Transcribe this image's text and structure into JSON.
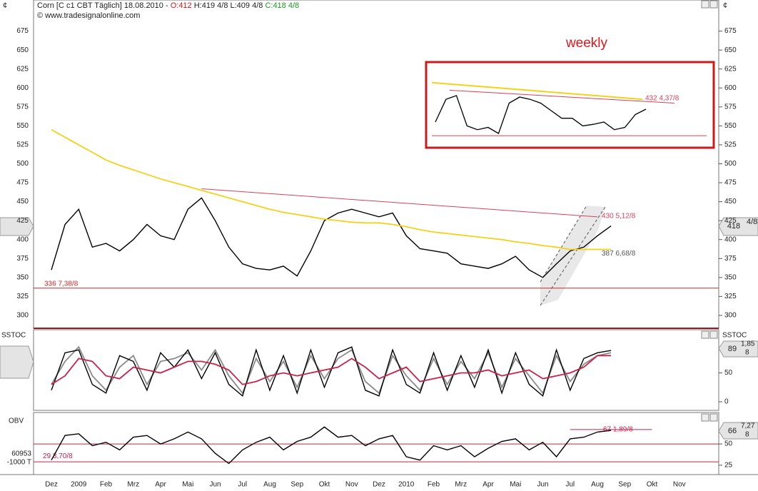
{
  "header": {
    "currency": "¢",
    "title": "Corn [C c1 CBT  Täglich] 18.08.2010 -",
    "open": "O:412",
    "high": "H:419 4/8",
    "low": "L:409 4/8",
    "close": "C:418 4/8",
    "copyright": "© www.tradesignalonline.com"
  },
  "chart_data": [
    {
      "type": "line",
      "categories": [
        "Dez",
        null,
        "2009",
        null,
        "Feb",
        null,
        "Mrz",
        null,
        "Apr",
        null,
        "Mai",
        null,
        "Jun",
        null,
        "Jul",
        null,
        "Aug",
        null,
        "Sep",
        null,
        "Okt",
        null,
        "Nov",
        null,
        "Dez",
        null,
        "2010",
        null,
        "Feb",
        null,
        "Mrz",
        null,
        "Apr",
        null,
        "Mai",
        null,
        "Jun",
        null,
        "Jul",
        null,
        "Aug",
        null,
        "Sep",
        null,
        "Okt",
        null,
        "Nov",
        null
      ],
      "ylim": [
        283,
        716
      ],
      "yticks": [
        300,
        325,
        350,
        375,
        400,
        425,
        450,
        475,
        500,
        525,
        550,
        575,
        600,
        625,
        650,
        675
      ],
      "series": [
        {
          "color": "#000000",
          "values": [
            360,
            420,
            440,
            390,
            395,
            385,
            400,
            420,
            405,
            400,
            440,
            455,
            425,
            390,
            368,
            362,
            360,
            365,
            352,
            385,
            425,
            435,
            440,
            435,
            430,
            435,
            405,
            388,
            385,
            382,
            368,
            365,
            362,
            368,
            378,
            360,
            350,
            368,
            385,
            390,
            405,
            418,
            null,
            null,
            null,
            null,
            null,
            null
          ]
        },
        {
          "color": "#f2d21c",
          "values": [
            545,
            535,
            525,
            515,
            505,
            498,
            492,
            486,
            480,
            475,
            470,
            465,
            460,
            455,
            450,
            445,
            440,
            436,
            433,
            430,
            427,
            425,
            423,
            422,
            422,
            420,
            417,
            413,
            410,
            408,
            406,
            404,
            402,
            400,
            397,
            395,
            392,
            390,
            387,
            387,
            387,
            387,
            null,
            null,
            null,
            null,
            null,
            null
          ],
          "end_label": "387 6,68/8"
        }
      ],
      "support": {
        "value": 336,
        "label": "336 7,38/8",
        "color": "#cc2a2a"
      },
      "resistance": {
        "values": [
          467,
          430
        ],
        "label": "430 5,12/8",
        "color": "#d9405a"
      },
      "last_value": {
        "price": "418",
        "fraction": "4/8"
      },
      "inset": {
        "label": "weekly",
        "values": [
          555,
          585,
          590,
          550,
          545,
          548,
          540,
          580,
          588,
          585,
          580,
          570,
          560,
          560,
          550,
          552,
          555,
          545,
          548,
          565,
          572
        ],
        "ma": [
          607,
          585
        ],
        "trend": [
          597,
          580
        ],
        "support": 537,
        "trend_label": "432 4,37/8",
        "border_color": "#cc1a1a"
      }
    },
    {
      "type": "line",
      "title": "SSTOC",
      "ylim": [
        -15,
        125
      ],
      "yticks": [
        0,
        50
      ],
      "series": [
        {
          "color": "#8a8a8a",
          "values": [
            30,
            70,
            95,
            45,
            20,
            60,
            80,
            30,
            70,
            75,
            85,
            55,
            90,
            45,
            15,
            75,
            35,
            70,
            25,
            80,
            40,
            75,
            90,
            35,
            15,
            80,
            45,
            20,
            75,
            30,
            70,
            40,
            85,
            25,
            75,
            45,
            15,
            80,
            35,
            65,
            80,
            85,
            null,
            null,
            null,
            null,
            null,
            null
          ]
        },
        {
          "color": "#000000",
          "values": [
            20,
            85,
            90,
            30,
            15,
            80,
            70,
            20,
            85,
            60,
            90,
            40,
            85,
            30,
            10,
            90,
            20,
            80,
            15,
            90,
            25,
            85,
            95,
            20,
            10,
            90,
            30,
            15,
            85,
            20,
            80,
            25,
            90,
            15,
            85,
            30,
            10,
            90,
            20,
            75,
            85,
            89,
            null,
            null,
            null,
            null,
            null,
            null
          ]
        },
        {
          "color": "#c8234a",
          "values": [
            30,
            45,
            75,
            70,
            45,
            40,
            60,
            55,
            50,
            60,
            70,
            70,
            65,
            55,
            30,
            35,
            45,
            50,
            45,
            50,
            55,
            60,
            75,
            60,
            40,
            50,
            60,
            35,
            40,
            45,
            50,
            50,
            55,
            45,
            50,
            55,
            40,
            45,
            50,
            60,
            80,
            80,
            null,
            null,
            null,
            null,
            null,
            null
          ]
        }
      ],
      "value_box": [
        "89",
        "1,85",
        "8"
      ]
    },
    {
      "type": "line",
      "title": "OBV",
      "ylim": [
        14,
        87
      ],
      "yticks": [
        25,
        50
      ],
      "left_labels": [
        "60953",
        "-1000 T"
      ],
      "series": [
        {
          "color": "#000000",
          "values": [
            31,
            60,
            62,
            48,
            52,
            43,
            58,
            60,
            50,
            56,
            64,
            56,
            39,
            27,
            43,
            52,
            58,
            43,
            53,
            58,
            70,
            58,
            60,
            48,
            56,
            60,
            35,
            31,
            48,
            43,
            48,
            35,
            45,
            53,
            56,
            43,
            52,
            35,
            56,
            58,
            64,
            66,
            null,
            null,
            null,
            null,
            null,
            null
          ]
        }
      ],
      "reference_lines": [
        50
      ],
      "levels": [
        {
          "value": 29,
          "label": "29 3,70/8"
        },
        {
          "value": 67,
          "label": "67 1,89/8"
        }
      ],
      "value_box": [
        "66",
        "7,27",
        "8"
      ]
    }
  ]
}
